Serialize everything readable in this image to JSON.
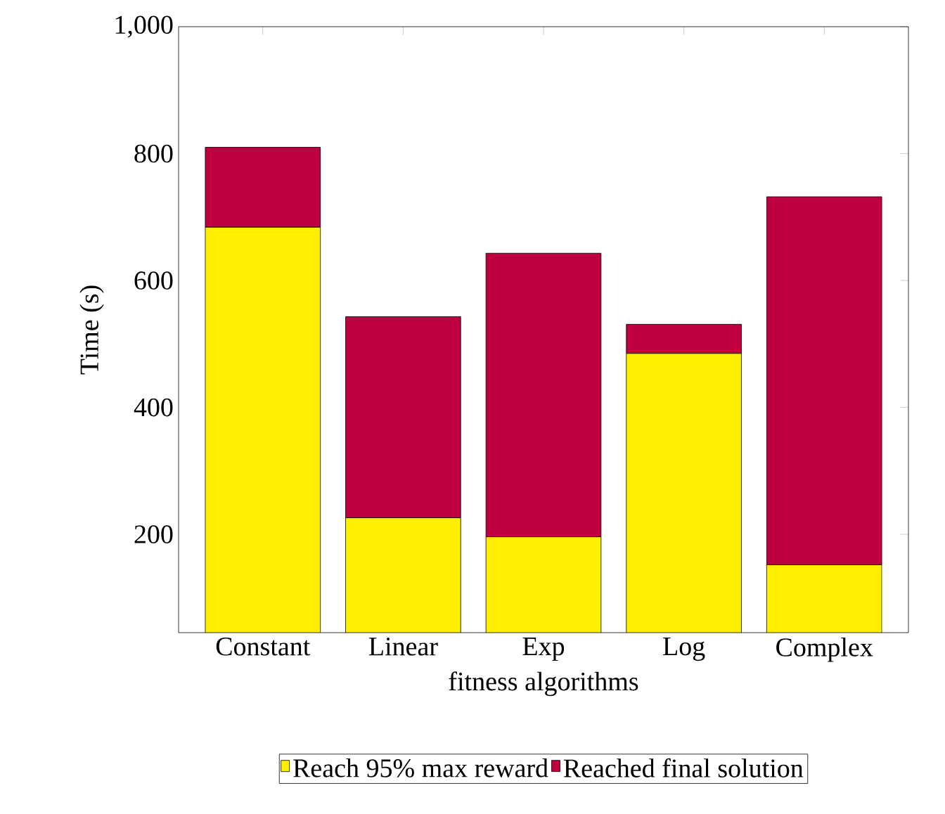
{
  "chart_data": {
    "type": "bar",
    "stacked": true,
    "xlabel": "fitness algorithms",
    "ylabel": "Time (s)",
    "categories": [
      "Constant",
      "Linear",
      "Exp",
      "Log",
      "Complex"
    ],
    "series": [
      {
        "name": "Reach 95% max reward",
        "color": "#fff000",
        "values": [
          684,
          226,
          196,
          485,
          152
        ]
      },
      {
        "name": "Reached final solution",
        "color": "#bf0040",
        "values": [
          126,
          317,
          447,
          46,
          580
        ]
      }
    ],
    "ylim": [
      45,
      1000
    ],
    "yticks": [
      200,
      400,
      600,
      800,
      {
        "value": 1000,
        "label": "1,000"
      }
    ],
    "legend": "bottom",
    "grid": false
  }
}
